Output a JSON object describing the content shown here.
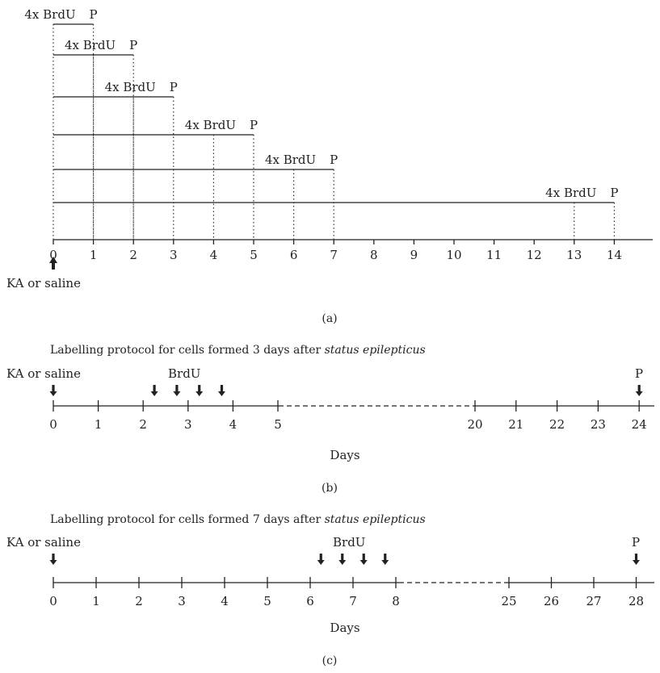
{
  "panel_a": {
    "caption": "(a)",
    "axis_ticks": [
      "0",
      "1",
      "2",
      "3",
      "4",
      "5",
      "6",
      "7",
      "8",
      "9",
      "10",
      "11",
      "12",
      "13",
      "14"
    ],
    "injection_label": "KA or saline",
    "protocols": [
      {
        "brdu_label": "4x BrdU",
        "perfusion_label": "P",
        "start_day": 0,
        "end_day": 1,
        "brdu_day": 0
      },
      {
        "brdu_label": "4x BrdU",
        "perfusion_label": "P",
        "start_day": 0,
        "end_day": 2,
        "brdu_day": 1
      },
      {
        "brdu_label": "4x BrdU",
        "perfusion_label": "P",
        "start_day": 0,
        "end_day": 3,
        "brdu_day": 2
      },
      {
        "brdu_label": "4x BrdU",
        "perfusion_label": "P",
        "start_day": 0,
        "end_day": 5,
        "brdu_day": 4
      },
      {
        "brdu_label": "4x BrdU",
        "perfusion_label": "P",
        "start_day": 0,
        "end_day": 7,
        "brdu_day": 6
      },
      {
        "brdu_label": "4x BrdU",
        "perfusion_label": "P",
        "start_day": 0,
        "end_day": 14,
        "brdu_day": 13
      }
    ]
  },
  "panel_b": {
    "title_prefix": "Labelling protocol for cells formed 3 days after ",
    "title_italic": "status epilepticus",
    "injection_label": "KA or saline",
    "brdu_label": "BrdU",
    "perfusion_label": "P",
    "xlabel": "Days",
    "caption": "(b)",
    "ticks_left": [
      "0",
      "1",
      "2",
      "3",
      "4",
      "5"
    ],
    "ticks_right": [
      "20",
      "21",
      "22",
      "23",
      "24"
    ],
    "brdu_times": [
      2.25,
      2.75,
      3.25,
      3.75
    ]
  },
  "panel_c": {
    "title_prefix": "Labelling protocol for cells formed 7 days after ",
    "title_italic": "status epilepticus",
    "injection_label": "KA or saline",
    "brdu_label": "BrdU",
    "perfusion_label": "P",
    "xlabel": "Days",
    "caption": "(c)",
    "ticks_left": [
      "0",
      "1",
      "2",
      "3",
      "4",
      "5",
      "6",
      "7",
      "8"
    ],
    "ticks_right": [
      "25",
      "26",
      "27",
      "28"
    ],
    "brdu_times": [
      6.25,
      6.75,
      7.25,
      7.75
    ]
  }
}
